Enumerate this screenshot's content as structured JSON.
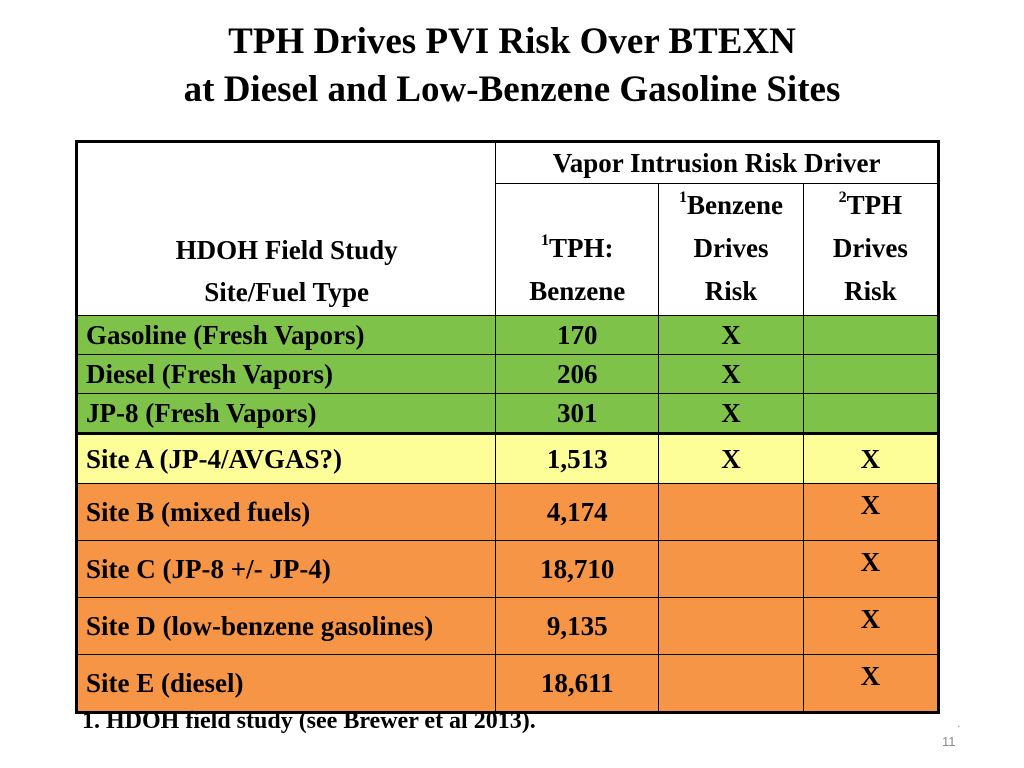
{
  "title": {
    "line1": "TPH Drives PVI Risk Over BTEXN",
    "line2": "at Diesel and Low-Benzene Gasoline Sites"
  },
  "table": {
    "header": {
      "study_line1": "HDOH Field Study",
      "study_line2": "Site/Fuel Type",
      "group": "Vapor Intrusion Risk Driver",
      "col_tph_sup": "1",
      "col_tph_line1": "TPH:",
      "col_tph_line2": "Benzene",
      "col_benzene_sup": "1",
      "col_benzene_line1": "Benzene",
      "col_benzene_line2": "Drives",
      "col_benzene_line3": "Risk",
      "col_tphrisk_sup": "2",
      "col_tphrisk_line1": "TPH",
      "col_tphrisk_line2": "Drives",
      "col_tphrisk_line3": "Risk"
    },
    "rows": [
      {
        "site": "Gasoline (Fresh Vapors)",
        "ratio": "170",
        "benzene": "X",
        "tph": ""
      },
      {
        "site": "Diesel (Fresh Vapors)",
        "ratio": "206",
        "benzene": "X",
        "tph": ""
      },
      {
        "site": "JP-8 (Fresh Vapors)",
        "ratio": "301",
        "benzene": "X",
        "tph": ""
      },
      {
        "site": "Site A (JP-4/AVGAS?)",
        "ratio": "1,513",
        "benzene": "X",
        "tph": "X"
      },
      {
        "site": "Site B (mixed fuels)",
        "ratio": "4,174",
        "benzene": "",
        "tph": "X"
      },
      {
        "site": "Site C (JP-8 +/- JP-4)",
        "ratio": "18,710",
        "benzene": "",
        "tph": "X"
      },
      {
        "site": "Site D (low-benzene gasolines)",
        "ratio": "9,135",
        "benzene": "",
        "tph": "X"
      },
      {
        "site": "Site E (diesel)",
        "ratio": "18,611",
        "benzene": "",
        "tph": "X"
      }
    ],
    "colors": {
      "green": "#7fc24a",
      "yellow": "#fefe99",
      "orange": "#f79546"
    }
  },
  "footnote": "1. HDOH field study (see Brewer et al 2013).",
  "slide_mark": ".",
  "slide_number": "11"
}
